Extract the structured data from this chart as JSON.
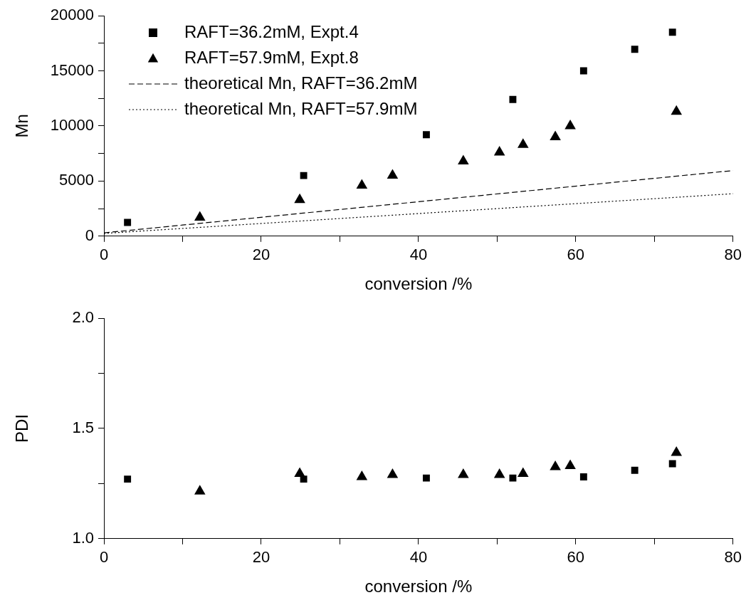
{
  "chart_data": [
    {
      "type": "scatter",
      "xlabel": "conversion /%",
      "ylabel": "Mn",
      "xlim": [
        0,
        80
      ],
      "ylim": [
        0,
        20000
      ],
      "xticks": [
        0,
        {
          "value": 10,
          "label": null
        },
        20,
        {
          "value": 30,
          "label": null
        },
        40,
        {
          "value": 50,
          "label": null
        },
        60,
        {
          "value": 70,
          "label": null
        },
        80
      ],
      "yticks": [
        0,
        {
          "value": 2500,
          "label": null
        },
        5000,
        {
          "value": 7500,
          "label": null
        },
        10000,
        {
          "value": 12500,
          "label": null
        },
        15000,
        {
          "value": 17500,
          "label": null
        },
        20000
      ],
      "grid": false,
      "legend": "top left",
      "series": [
        {
          "name": "RAFT=36.2mM, Expt.4",
          "marker": "square",
          "color": "#000000",
          "x": [
            3,
            25.4,
            41,
            52,
            61,
            67.5,
            72.3
          ],
          "values": [
            1250,
            5500,
            9200,
            12400,
            15000,
            16950,
            18500
          ]
        },
        {
          "name": "RAFT=57.9mM, Expt.8",
          "marker": "triangle",
          "color": "#000000",
          "x": [
            12.2,
            24.9,
            32.8,
            36.7,
            45.7,
            50.3,
            53.3,
            57.4,
            59.3,
            72.8
          ],
          "values": [
            1700,
            3300,
            4600,
            5500,
            6800,
            7600,
            8300,
            9000,
            10000,
            11300
          ]
        },
        {
          "name": "theoretical Mn, RAFT=36.2mM",
          "type": "line",
          "marker": "none",
          "line_style": "dashed",
          "color": "#000000",
          "x": [
            0,
            80
          ],
          "values": [
            300,
            5950
          ]
        },
        {
          "name": "theoretical Mn, RAFT=57.9mM",
          "type": "line",
          "marker": "none",
          "line_style": "dotted",
          "color": "#000000",
          "x": [
            0,
            80
          ],
          "values": [
            250,
            3850
          ]
        }
      ]
    },
    {
      "type": "scatter",
      "xlabel": "conversion /%",
      "ylabel": "PDI",
      "xlim": [
        0,
        80
      ],
      "ylim": [
        1.0,
        2.0
      ],
      "xticks": [
        0,
        {
          "value": 10,
          "label": null
        },
        20,
        {
          "value": 30,
          "label": null
        },
        40,
        {
          "value": 50,
          "label": null
        },
        60,
        {
          "value": 70,
          "label": null
        },
        80
      ],
      "yticks": [
        {
          "value": 1.0,
          "label": "1.0"
        },
        {
          "value": 1.25,
          "label": null
        },
        1.5,
        {
          "value": 1.75,
          "label": null
        },
        {
          "value": 2.0,
          "label": "2.0"
        }
      ],
      "grid": false,
      "legend": false,
      "series": [
        {
          "marker": "square",
          "color": "#000000",
          "x": [
            3,
            25.4,
            41,
            52,
            61,
            67.5,
            72.3
          ],
          "values": [
            1.27,
            1.27,
            1.275,
            1.275,
            1.28,
            1.31,
            1.34
          ]
        },
        {
          "marker": "triangle",
          "color": "#000000",
          "x": [
            12.2,
            24.9,
            32.8,
            36.7,
            45.7,
            50.3,
            53.3,
            57.4,
            59.3,
            72.8
          ],
          "values": [
            1.215,
            1.295,
            1.28,
            1.29,
            1.29,
            1.29,
            1.295,
            1.325,
            1.33,
            1.39
          ]
        }
      ]
    }
  ]
}
